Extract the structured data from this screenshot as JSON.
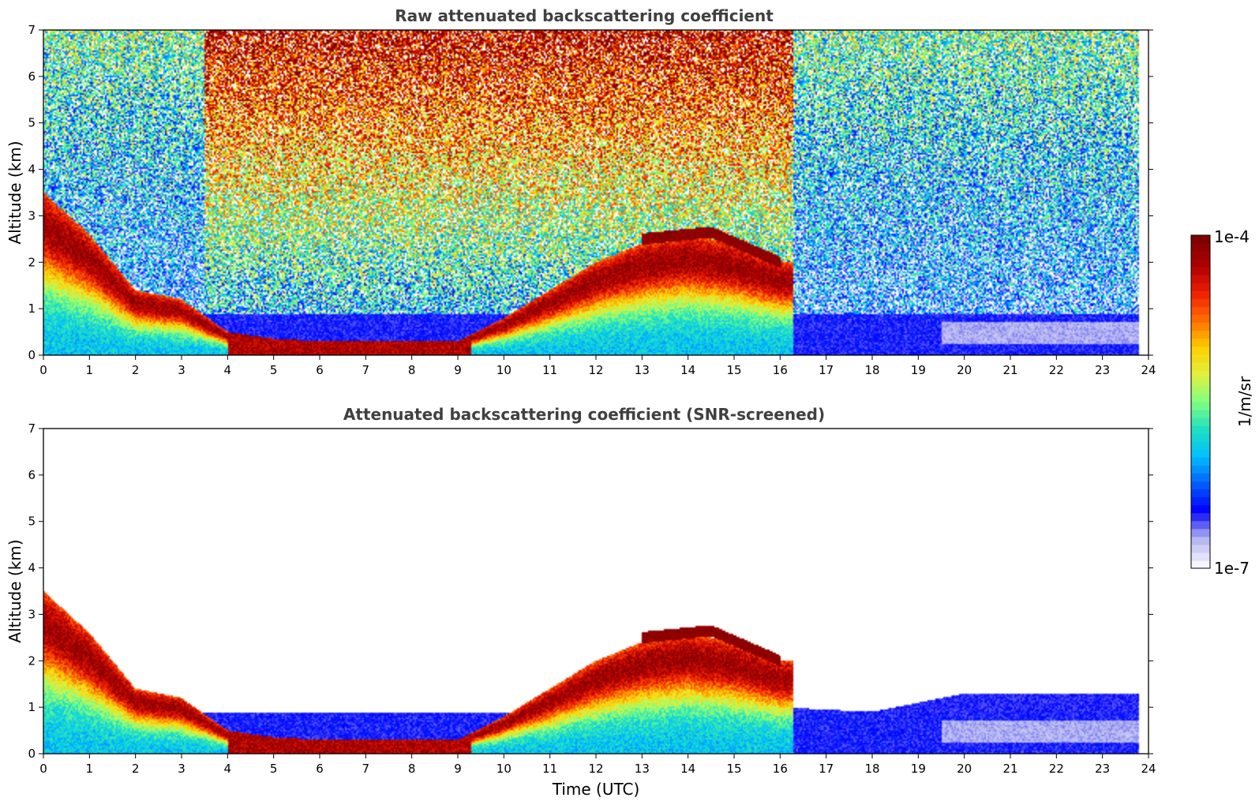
{
  "figure": {
    "panels": [
      {
        "title": "Raw attenuated backscattering coefficient",
        "ylabel": "Altitude (km)",
        "xlabel": "",
        "screened": false
      },
      {
        "title": "Attenuated backscattering coefficient (SNR-screened)",
        "ylabel": "Altitude (km)",
        "xlabel": "Time (UTC)",
        "screened": true
      }
    ],
    "colorbar": {
      "label": "1/m/sr",
      "max_label": "1e-4",
      "min_label": "1e-7"
    },
    "colors": {
      "title_color": "#404040",
      "colormap": [
        "#f5f5ff",
        "#b0b0f0",
        "#0000ff",
        "#0060ff",
        "#00c0ff",
        "#20e0c0",
        "#80ff80",
        "#e0f040",
        "#ffd000",
        "#ff7000",
        "#f02000",
        "#b00000",
        "#800000"
      ]
    }
  },
  "chart_data": [
    {
      "type": "heatmap",
      "title": "Raw attenuated backscattering coefficient",
      "xlabel": "",
      "ylabel": "Altitude (km)",
      "xlim": [
        0,
        24
      ],
      "ylim": [
        0,
        7
      ],
      "x_ticks": [
        0,
        1,
        2,
        3,
        4,
        5,
        6,
        7,
        8,
        9,
        10,
        11,
        12,
        13,
        14,
        15,
        16,
        17,
        18,
        19,
        20,
        21,
        22,
        23,
        24
      ],
      "y_ticks": [
        0,
        1,
        2,
        3,
        4,
        5,
        6,
        7
      ],
      "color_scale": "log",
      "color_range": [
        1e-07,
        0.0001
      ],
      "colorbar_label": "1/m/sr",
      "data_extent_time": [
        0,
        23.8
      ],
      "features": {
        "boundary_layer_top_km": [
          [
            0,
            3.5
          ],
          [
            1,
            2.6
          ],
          [
            2,
            1.4
          ],
          [
            3,
            1.2
          ],
          [
            4,
            0.5
          ],
          [
            5,
            0.35
          ],
          [
            6,
            0.3
          ],
          [
            7,
            0.3
          ],
          [
            8,
            0.3
          ],
          [
            9,
            0.3
          ],
          [
            10,
            0.8
          ],
          [
            11,
            1.4
          ],
          [
            12,
            2.0
          ],
          [
            13,
            2.4
          ],
          [
            14,
            2.6
          ],
          [
            15,
            2.4
          ],
          [
            16,
            2.0
          ]
        ],
        "cloud_layer_km": [
          [
            13.0,
            2.5
          ],
          [
            14.5,
            2.65
          ],
          [
            16.0,
            2.0
          ]
        ]
      }
    },
    {
      "type": "heatmap",
      "title": "Attenuated backscattering coefficient (SNR-screened)",
      "xlabel": "Time (UTC)",
      "ylabel": "Altitude (km)",
      "xlim": [
        0,
        24
      ],
      "ylim": [
        0,
        7
      ],
      "x_ticks": [
        0,
        1,
        2,
        3,
        4,
        5,
        6,
        7,
        8,
        9,
        10,
        11,
        12,
        13,
        14,
        15,
        16,
        17,
        18,
        19,
        20,
        21,
        22,
        23,
        24
      ],
      "y_ticks": [
        0,
        1,
        2,
        3,
        4,
        5,
        6,
        7
      ],
      "color_scale": "log",
      "color_range": [
        1e-07,
        0.0001
      ],
      "colorbar_label": "1/m/sr",
      "data_extent_time": [
        0,
        23.8
      ],
      "features": {
        "boundary_layer_top_km": [
          [
            0,
            3.5
          ],
          [
            1,
            2.6
          ],
          [
            2,
            1.4
          ],
          [
            3,
            1.2
          ],
          [
            4,
            0.5
          ],
          [
            5,
            0.35
          ],
          [
            6,
            0.3
          ],
          [
            7,
            0.3
          ],
          [
            8,
            0.3
          ],
          [
            9,
            0.3
          ],
          [
            10,
            0.8
          ],
          [
            11,
            1.4
          ],
          [
            12,
            2.0
          ],
          [
            13,
            2.4
          ],
          [
            14,
            2.6
          ],
          [
            15,
            2.4
          ],
          [
            16,
            2.0
          ]
        ],
        "cloud_layer_km": [
          [
            13.0,
            2.5
          ],
          [
            14.5,
            2.65
          ],
          [
            16.0,
            2.0
          ]
        ],
        "residual_layer_top_km": [
          [
            16,
            1.0
          ],
          [
            18,
            0.9
          ],
          [
            20,
            1.3
          ],
          [
            22,
            1.3
          ],
          [
            23.8,
            1.3
          ]
        ]
      }
    }
  ]
}
